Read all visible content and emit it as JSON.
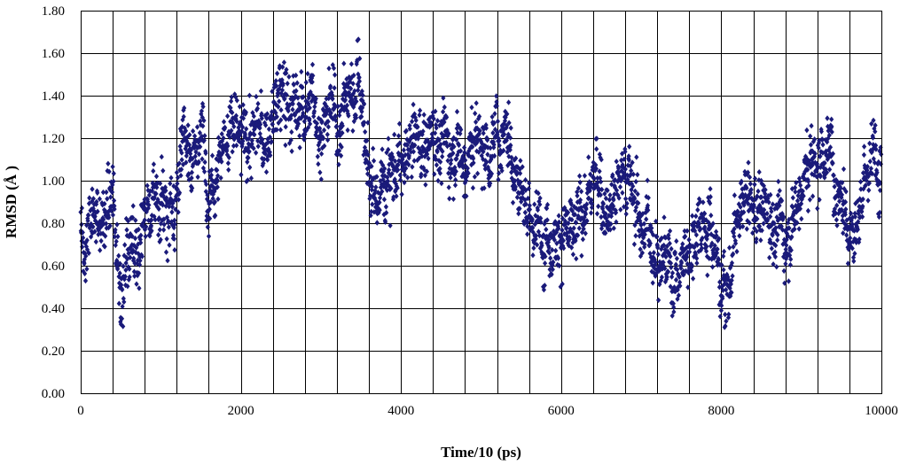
{
  "chart_data": {
    "type": "scatter",
    "title": "",
    "xlabel": "Time/10 (ps)",
    "ylabel": "RMSD (Å )",
    "xlim": [
      0,
      10000
    ],
    "ylim": [
      0,
      1.8
    ],
    "x_ticks": [
      "0",
      "2000",
      "4000",
      "6000",
      "8000",
      "10000"
    ],
    "y_ticks": [
      "0.00",
      "0.20",
      "0.40",
      "0.60",
      "0.80",
      "1.00",
      "1.20",
      "1.40",
      "1.60",
      "1.80"
    ],
    "x_minor_step": 400,
    "grid": true,
    "marker": "diamond",
    "series": [
      {
        "color": "#1a1a7a",
        "trend": {
          "x": [
            0,
            50,
            100,
            200,
            300,
            400,
            480,
            520,
            600,
            700,
            800,
            900,
            1000,
            1100,
            1200,
            1300,
            1400,
            1500,
            1600,
            1700,
            1800,
            1900,
            2000,
            2100,
            2200,
            2300,
            2400,
            2500,
            2600,
            2700,
            2800,
            2900,
            3000,
            3100,
            3200,
            3300,
            3400,
            3480,
            3520,
            3600,
            3650,
            3700,
            3800,
            3900,
            4000,
            4100,
            4200,
            4300,
            4400,
            4500,
            4600,
            4700,
            4800,
            4900,
            5000,
            5100,
            5200,
            5300,
            5400,
            5500,
            5600,
            5700,
            5800,
            5900,
            6000,
            6100,
            6200,
            6300,
            6400,
            6500,
            6600,
            6700,
            6800,
            6900,
            7000,
            7100,
            7200,
            7300,
            7400,
            7500,
            7600,
            7700,
            7800,
            7900,
            8000,
            8100,
            8200,
            8300,
            8400,
            8500,
            8600,
            8700,
            8800,
            8900,
            9000,
            9100,
            9200,
            9300,
            9400,
            9500,
            9600,
            9700,
            9800,
            9900,
            10000
          ],
          "y": [
            0.85,
            0.65,
            0.7,
            0.9,
            0.8,
            0.9,
            0.55,
            0.5,
            0.75,
            0.7,
            0.85,
            0.95,
            0.9,
            0.85,
            1.0,
            1.1,
            1.15,
            1.2,
            1.05,
            1.1,
            1.2,
            1.25,
            1.15,
            1.2,
            1.25,
            1.15,
            1.3,
            1.4,
            1.35,
            1.3,
            1.4,
            1.35,
            1.25,
            1.3,
            1.3,
            1.35,
            1.45,
            1.55,
            1.3,
            1.0,
            0.95,
            0.9,
            1.05,
            1.1,
            1.0,
            1.1,
            1.2,
            1.15,
            1.25,
            1.2,
            1.15,
            1.2,
            1.1,
            1.15,
            1.2,
            1.15,
            1.2,
            1.3,
            1.15,
            1.0,
            0.8,
            0.75,
            0.8,
            0.75,
            0.8,
            0.7,
            0.75,
            0.9,
            1.0,
            0.95,
            0.9,
            1.0,
            1.05,
            0.95,
            0.8,
            0.75,
            0.7,
            0.65,
            0.55,
            0.6,
            0.7,
            0.8,
            0.85,
            0.75,
            0.5,
            0.55,
            0.75,
            0.9,
            0.85,
            0.9,
            0.85,
            0.8,
            0.75,
            0.85,
            1.0,
            1.05,
            1.1,
            1.2,
            1.05,
            0.95,
            0.85,
            0.8,
            1.0,
            1.1,
            1.15
          ],
          "spread": 0.13
        }
      }
    ]
  }
}
